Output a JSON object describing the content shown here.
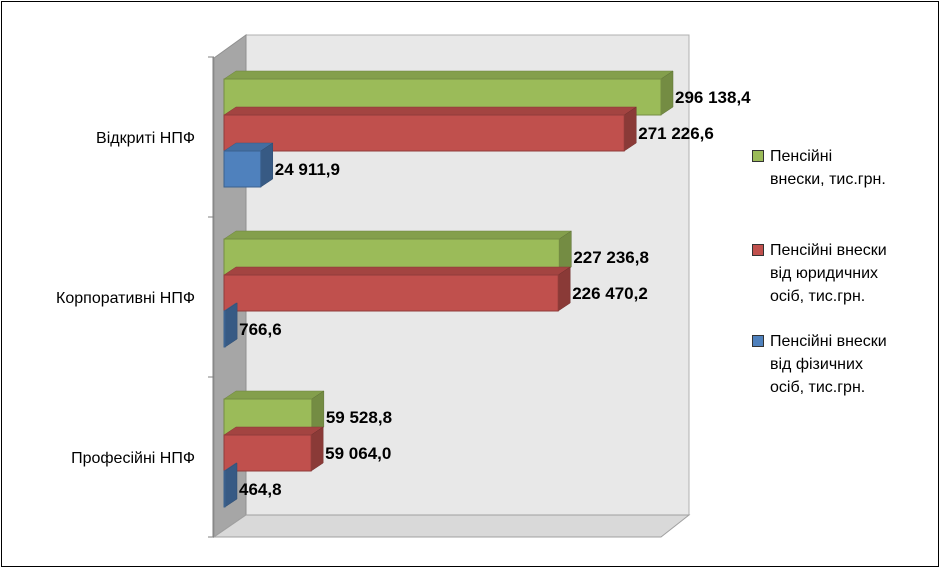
{
  "chart_data": {
    "type": "bar",
    "orientation": "horizontal",
    "three_d": true,
    "categories": [
      "Відкриті НПФ",
      "Корпоративні НПФ",
      "Професійні НПФ"
    ],
    "series": [
      {
        "name": "Пенсійні внески, тис.грн.",
        "color": "#9BBB59",
        "values": [
          296138.4,
          227236.8,
          59528.8
        ],
        "labels": [
          "296 138,4",
          "227 236,8",
          "59 528,8"
        ]
      },
      {
        "name": "Пенсійні внески від юридичних осіб, тис.грн.",
        "color": "#C0504D",
        "values": [
          271226.6,
          226470.2,
          59064.0
        ],
        "labels": [
          "271 226,6",
          "226 470,2",
          "59 064,0"
        ]
      },
      {
        "name": "Пенсійні внески від фізичних осіб, тис.грн.",
        "color": "#4F81BD",
        "values": [
          24911.9,
          766.6,
          464.8
        ],
        "labels": [
          "24 911,9",
          "766,6",
          "464,8"
        ]
      }
    ],
    "xlim": [
      0,
      296138.4
    ],
    "grid": false,
    "legend_position": "right"
  },
  "legend": {
    "items": [
      {
        "lines": [
          "Пенсійні",
          "внески, тис.грн."
        ],
        "color": "#9BBB59"
      },
      {
        "lines": [
          "Пенсійні внески",
          "від юридичних",
          "осіб, тис.грн."
        ],
        "color": "#C0504D"
      },
      {
        "lines": [
          "Пенсійні внески",
          "від фізичних",
          "осіб, тис.грн."
        ],
        "color": "#4F81BD"
      }
    ]
  }
}
